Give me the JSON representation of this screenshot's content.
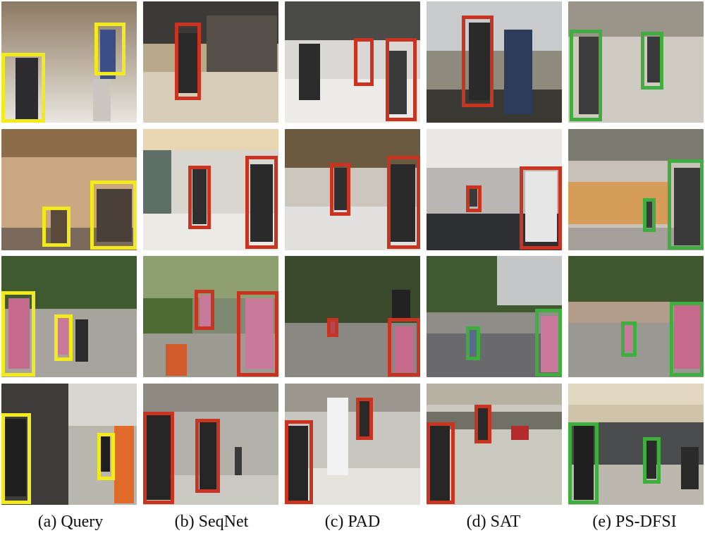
{
  "captions": [
    "(a) Query",
    "(b) SeqNet",
    "(c) PAD",
    "(d) SAT",
    "(e) PS-DFSI"
  ],
  "colors": {
    "query_box": "#f2ea1c",
    "wrong_box": "#c9331f",
    "correct_box": "#3fae3f"
  }
}
